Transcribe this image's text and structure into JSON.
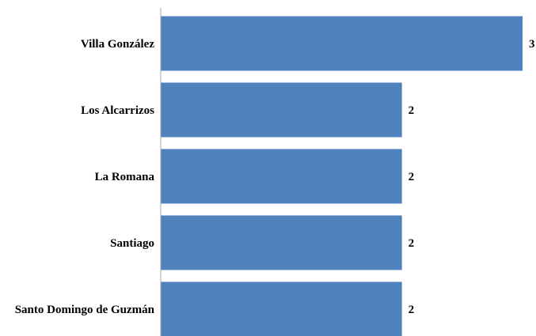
{
  "chart_data": {
    "type": "bar",
    "orientation": "horizontal",
    "categories": [
      "Villa González",
      "Los Alcarrizos",
      "La Romana",
      "Santiago",
      "Santo Domingo de Guzmán"
    ],
    "values": [
      3,
      2,
      2,
      2,
      2
    ],
    "title": "",
    "xlabel": "",
    "ylabel": "",
    "xlim": [
      0,
      3
    ],
    "grid": false,
    "legend": "none",
    "bar_color": "#4F81BD",
    "axis_color": "#A6A6A6"
  }
}
